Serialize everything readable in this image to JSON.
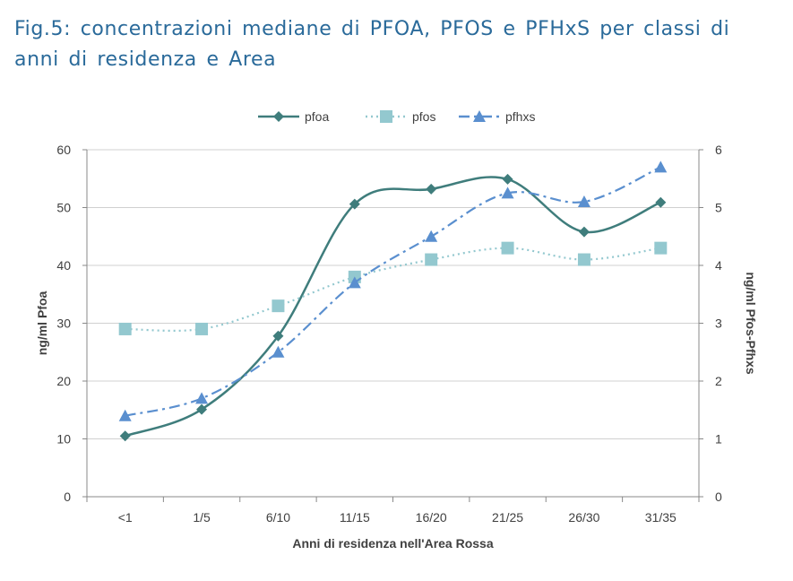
{
  "title": "Fig.5: concentrazioni mediane di PFOA, PFOS e PFHxS per classi di anni di residenza e Area",
  "chart_data": {
    "type": "line",
    "categories": [
      "<1",
      "1/5",
      "6/10",
      "11/15",
      "16/20",
      "21/25",
      "26/30",
      "31/35"
    ],
    "xlabel": "Anni di residenza nell'Area Rossa",
    "ylabel": "ng/ml Pfoa",
    "y2label": "ng/ml Pfos-Pfhxs",
    "ylim": [
      0,
      60
    ],
    "y2lim": [
      0,
      6
    ],
    "yticks": [
      0,
      10,
      20,
      30,
      40,
      50,
      60
    ],
    "y2ticks": [
      0,
      1,
      2,
      3,
      4,
      5,
      6
    ],
    "grid": true,
    "legend": "top",
    "series": [
      {
        "name": "pfoa",
        "axis": "left",
        "color": "#3f7d7c",
        "marker": "diamond",
        "dash": "",
        "values": [
          10.5,
          15.1,
          27.8,
          50.6,
          53.2,
          54.9,
          45.8,
          50.9
        ]
      },
      {
        "name": "pfos",
        "axis": "right",
        "color": "#93c8cf",
        "marker": "square",
        "dash": "2,4",
        "values": [
          2.9,
          2.9,
          3.3,
          3.8,
          4.1,
          4.3,
          4.1,
          4.3
        ]
      },
      {
        "name": "pfhxs",
        "axis": "right",
        "color": "#5a8fcf",
        "marker": "triangle",
        "dash": "12,5,3,5",
        "values": [
          1.4,
          1.7,
          2.5,
          3.7,
          4.5,
          5.25,
          5.1,
          5.7
        ]
      }
    ]
  }
}
